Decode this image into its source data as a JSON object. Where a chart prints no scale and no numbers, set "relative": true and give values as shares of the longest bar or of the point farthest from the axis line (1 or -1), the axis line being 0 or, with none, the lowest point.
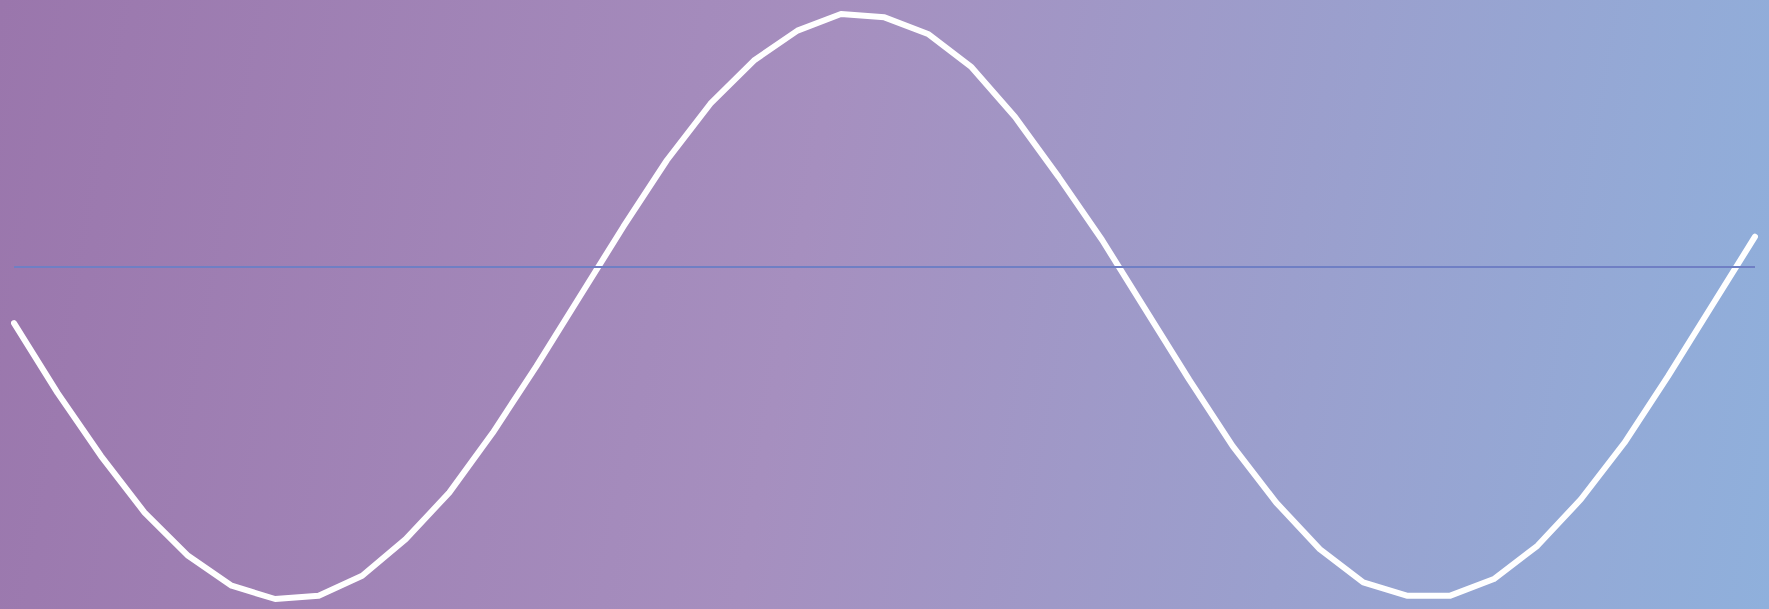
{
  "chart_data": {
    "type": "line",
    "relative": true,
    "categories": [
      null,
      null,
      null,
      null,
      null,
      null,
      null,
      null,
      null,
      null,
      null,
      null,
      null,
      null,
      null,
      null,
      null,
      null,
      null,
      null,
      null,
      null,
      null,
      null,
      null,
      null,
      null,
      null,
      null,
      null,
      null,
      null,
      null,
      null,
      null,
      null,
      null,
      null,
      null,
      null,
      null
    ],
    "series": [
      {
        "color": "#ffffff",
        "values": [
          -0.17,
          -0.38,
          -0.57,
          -0.74,
          -0.87,
          -0.96,
          -1,
          -0.99,
          -0.93,
          -0.82,
          -0.68,
          -0.5,
          -0.3,
          -0.09,
          0.12,
          0.32,
          0.49,
          0.62,
          0.71,
          0.76,
          0.75,
          0.7,
          0.6,
          0.45,
          0.27,
          0.08,
          -0.13,
          -0.34,
          -0.54,
          -0.71,
          -0.85,
          -0.95,
          -0.99,
          -0.99,
          -0.94,
          -0.84,
          -0.7,
          -0.53,
          -0.33,
          -0.12,
          0.09
        ]
      }
    ],
    "ref_lines": [
      {
        "axis": "y",
        "value": 0,
        "color": "#6f7fc4"
      }
    ],
    "grid": false,
    "marker": "none",
    "line_style": "solid"
  }
}
